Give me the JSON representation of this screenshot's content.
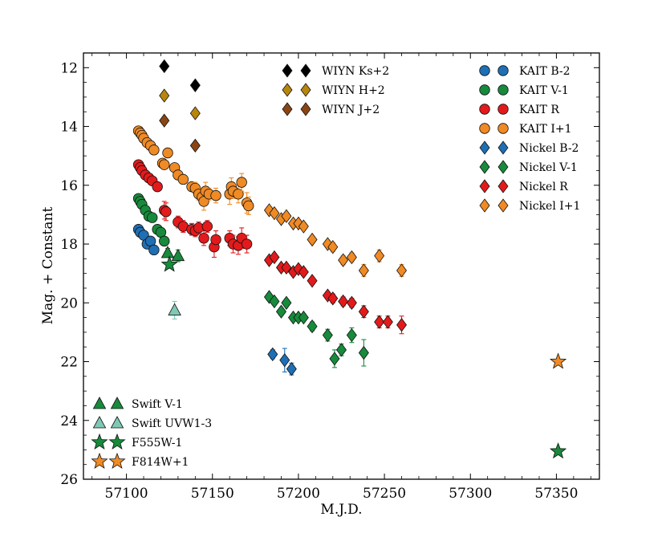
{
  "chart_data": {
    "type": "scatter",
    "title": "",
    "xlabel": "M.J.D.",
    "ylabel": "Mag. + Constant",
    "xlim": [
      57075,
      57375
    ],
    "ylim": [
      26,
      11.5
    ],
    "y_inverted": true,
    "x_ticks": [
      57100,
      57150,
      57200,
      57250,
      57300,
      57350
    ],
    "y_ticks": [
      12,
      14,
      16,
      18,
      20,
      22,
      24,
      26
    ],
    "grid": false,
    "series": [
      {
        "name": "WIYN Ks+2",
        "key": "wiyn_ks",
        "marker": "diamond",
        "color": "#000000",
        "points": [
          [
            57122,
            11.95
          ],
          [
            57140,
            12.6
          ]
        ]
      },
      {
        "name": "WIYN H+2",
        "key": "wiyn_h",
        "marker": "diamond",
        "color": "#b8860b",
        "points": [
          [
            57122,
            12.95
          ],
          [
            57140,
            13.55
          ]
        ]
      },
      {
        "name": "WIYN J+2",
        "key": "wiyn_j",
        "marker": "diamond",
        "color": "#8b4513",
        "points": [
          [
            57122,
            13.8
          ],
          [
            57140,
            14.65
          ]
        ]
      },
      {
        "name": "KAIT B-2",
        "key": "kait_b",
        "marker": "circle",
        "color": "#1f6fb4",
        "points": [
          [
            57107,
            17.5
          ],
          [
            57108,
            17.6
          ],
          [
            57110,
            17.7
          ],
          [
            57112,
            18.0
          ],
          [
            57114,
            17.9
          ],
          [
            57116,
            18.2
          ]
        ]
      },
      {
        "name": "KAIT V-1",
        "key": "kait_v",
        "marker": "circle",
        "color": "#178a3c",
        "points": [
          [
            57107,
            16.45
          ],
          [
            57108,
            16.55
          ],
          [
            57109,
            16.65
          ],
          [
            57111,
            16.85
          ],
          [
            57113,
            17.05
          ],
          [
            57115,
            17.1
          ],
          [
            57118,
            17.5
          ],
          [
            57120,
            17.6
          ],
          [
            57122,
            17.9
          ]
        ]
      },
      {
        "name": "KAIT R",
        "key": "kait_r",
        "marker": "circle",
        "color": "#e31a1c",
        "points": [
          [
            57107,
            15.3
          ],
          [
            57108,
            15.4
          ],
          [
            57109,
            15.5
          ],
          [
            57111,
            15.65
          ],
          [
            57113,
            15.75
          ],
          [
            57115,
            15.85
          ],
          [
            57118,
            16.05
          ],
          [
            57122,
            16.85
          ],
          [
            57123,
            16.9
          ],
          [
            57130,
            17.25
          ],
          [
            57133,
            17.4
          ],
          [
            57138,
            17.5
          ],
          [
            57140,
            17.55
          ],
          [
            57142,
            17.45
          ],
          [
            57145,
            17.8
          ],
          [
            57147,
            17.4
          ],
          [
            57151,
            18.1
          ],
          [
            57152,
            17.85
          ],
          [
            57160,
            17.8
          ],
          [
            57162,
            18.0
          ],
          [
            57165,
            18.05
          ],
          [
            57167,
            17.8
          ],
          [
            57170,
            18.0
          ]
        ],
        "err": [
          0.12,
          0.12,
          0.12,
          0.12,
          0.12,
          0.12,
          0.12,
          0.3,
          0.3,
          0.2,
          0.2,
          0.2,
          0.2,
          0.2,
          0.25,
          0.2,
          0.35,
          0.3,
          0.25,
          0.3,
          0.3,
          0.35,
          0.3
        ]
      },
      {
        "name": "KAIT I+1",
        "key": "kait_i",
        "marker": "circle",
        "color": "#f08a24",
        "points": [
          [
            57107,
            14.15
          ],
          [
            57108,
            14.22
          ],
          [
            57109,
            14.3
          ],
          [
            57110,
            14.4
          ],
          [
            57112,
            14.55
          ],
          [
            57114,
            14.65
          ],
          [
            57116,
            14.8
          ],
          [
            57121,
            15.25
          ],
          [
            57122,
            15.3
          ],
          [
            57124,
            14.9
          ],
          [
            57128,
            15.4
          ],
          [
            57130,
            15.65
          ],
          [
            57133,
            15.8
          ],
          [
            57138,
            16.05
          ],
          [
            57140,
            16.1
          ],
          [
            57142,
            16.3
          ],
          [
            57144,
            16.4
          ],
          [
            57145,
            16.55
          ],
          [
            57146,
            16.2
          ],
          [
            57148,
            16.3
          ],
          [
            57152,
            16.35
          ],
          [
            57160,
            16.3
          ],
          [
            57161,
            16.05
          ],
          [
            57162,
            16.2
          ],
          [
            57165,
            16.3
          ],
          [
            57167,
            15.9
          ],
          [
            57170,
            16.6
          ],
          [
            57171,
            16.7
          ]
        ],
        "err": [
          0.1,
          0.1,
          0.1,
          0.1,
          0.1,
          0.1,
          0.1,
          0.12,
          0.12,
          0.12,
          0.12,
          0.15,
          0.15,
          0.15,
          0.2,
          0.2,
          0.25,
          0.3,
          0.3,
          0.2,
          0.25,
          0.35,
          0.3,
          0.25,
          0.3,
          0.3,
          0.35,
          0.3
        ]
      },
      {
        "name": "Nickel B-2",
        "key": "nickel_b",
        "marker": "diamond",
        "color": "#1f6fb4",
        "points": [
          [
            57185,
            21.75
          ],
          [
            57192,
            21.95
          ],
          [
            57196,
            22.25
          ]
        ],
        "err": [
          0.15,
          0.4,
          0.2
        ]
      },
      {
        "name": "Nickel V-1",
        "key": "nickel_v",
        "marker": "diamond",
        "color": "#178a3c",
        "points": [
          [
            57183,
            19.8
          ],
          [
            57186,
            19.95
          ],
          [
            57190,
            20.3
          ],
          [
            57193,
            20.0
          ],
          [
            57197,
            20.5
          ],
          [
            57200,
            20.5
          ],
          [
            57203,
            20.5
          ],
          [
            57208,
            20.8
          ],
          [
            57217,
            21.1
          ],
          [
            57221,
            21.9
          ],
          [
            57225,
            21.6
          ],
          [
            57231,
            21.1
          ],
          [
            57238,
            21.7
          ]
        ],
        "err": [
          0.12,
          0.12,
          0.12,
          0.12,
          0.12,
          0.12,
          0.12,
          0.15,
          0.2,
          0.3,
          0.2,
          0.25,
          0.45
        ]
      },
      {
        "name": "Nickel R",
        "key": "nickel_r",
        "marker": "diamond",
        "color": "#e31a1c",
        "points": [
          [
            57183,
            18.55
          ],
          [
            57186,
            18.45
          ],
          [
            57190,
            18.8
          ],
          [
            57193,
            18.8
          ],
          [
            57197,
            18.95
          ],
          [
            57200,
            18.85
          ],
          [
            57203,
            18.95
          ],
          [
            57208,
            19.25
          ],
          [
            57217,
            19.75
          ],
          [
            57220,
            19.85
          ],
          [
            57226,
            19.95
          ],
          [
            57231,
            20.0
          ],
          [
            57238,
            20.3
          ],
          [
            57247,
            20.65
          ],
          [
            57252,
            20.65
          ],
          [
            57260,
            20.75
          ]
        ],
        "err": [
          0.12,
          0.12,
          0.12,
          0.12,
          0.12,
          0.12,
          0.12,
          0.12,
          0.12,
          0.15,
          0.15,
          0.15,
          0.2,
          0.2,
          0.2,
          0.3
        ]
      },
      {
        "name": "Nickel I+1",
        "key": "nickel_i",
        "marker": "diamond",
        "color": "#f08a24",
        "points": [
          [
            57183,
            16.85
          ],
          [
            57186,
            16.95
          ],
          [
            57190,
            17.15
          ],
          [
            57193,
            17.05
          ],
          [
            57197,
            17.3
          ],
          [
            57200,
            17.3
          ],
          [
            57203,
            17.4
          ],
          [
            57208,
            17.85
          ],
          [
            57217,
            18.0
          ],
          [
            57220,
            18.1
          ],
          [
            57226,
            18.55
          ],
          [
            57231,
            18.45
          ],
          [
            57238,
            18.9
          ],
          [
            57247,
            18.4
          ],
          [
            57260,
            18.9
          ]
        ],
        "err": [
          0.12,
          0.12,
          0.12,
          0.12,
          0.12,
          0.12,
          0.12,
          0.12,
          0.12,
          0.15,
          0.15,
          0.15,
          0.2,
          0.2,
          0.2
        ]
      },
      {
        "name": "Swift V-1",
        "key": "swift_v",
        "marker": "triangle",
        "color": "#178a3c",
        "points": [
          [
            57124,
            18.3
          ],
          [
            57130,
            18.4
          ]
        ],
        "err": [
          0.15,
          0.2
        ]
      },
      {
        "name": "Swift UVW1-3",
        "key": "swift_uvw1",
        "marker": "triangle",
        "color": "#7fc8b4",
        "points": [
          [
            57128,
            20.25
          ]
        ],
        "err": [
          0.3
        ]
      },
      {
        "name": "F555W-1",
        "key": "f555w",
        "marker": "star",
        "color": "#178a3c",
        "points": [
          [
            57125,
            18.7
          ],
          [
            57351,
            25.05
          ]
        ]
      },
      {
        "name": "F814W+1",
        "key": "f814w",
        "marker": "star",
        "color": "#f08a24",
        "points": [
          [
            57351,
            22.0
          ]
        ]
      }
    ],
    "legend_top_center": [
      "wiyn_ks",
      "wiyn_h",
      "wiyn_j"
    ],
    "legend_top_right": [
      "kait_b",
      "kait_v",
      "kait_r",
      "kait_i",
      "nickel_b",
      "nickel_v",
      "nickel_r",
      "nickel_i"
    ],
    "legend_bottom_left": [
      "swift_v",
      "swift_uvw1",
      "f555w",
      "f814w"
    ]
  }
}
